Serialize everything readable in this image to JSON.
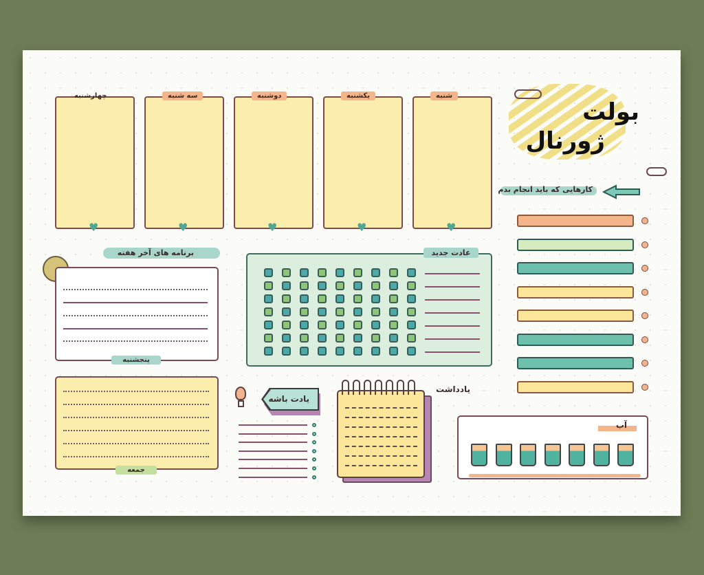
{
  "title": {
    "line1": "بولت",
    "line2": "ژورنال"
  },
  "days": [
    {
      "label": "چهارشنبه",
      "tag_color": "transparent"
    },
    {
      "label": "سه شنبه",
      "tag_color": "#f4b58a"
    },
    {
      "label": "دوشنبه",
      "tag_color": "#f4b58a"
    },
    {
      "label": "یکشنبه",
      "tag_color": "#f4b58a"
    },
    {
      "label": "شنبه",
      "tag_color": "#f4b58a"
    }
  ],
  "todo": {
    "heading": "کارهایی که باید انجام بدم",
    "bar_colors": [
      "#f4b58a",
      "#d6ebc0",
      "#6cc0ac",
      "#fbe69a",
      "#fbe69a",
      "#6cc0ac",
      "#6cc0ac",
      "#fbe69a"
    ]
  },
  "weekend": {
    "heading": "برنامه های آخر هفته",
    "thursday": "پنجشنبه",
    "friday": "جمعه"
  },
  "habit": {
    "heading": "عادت جدید",
    "columns": 9,
    "rows": 7
  },
  "reminder": {
    "heading": "یادت باشه"
  },
  "notes": {
    "heading": "یادداشت"
  },
  "water": {
    "heading": "آب",
    "cups": 7
  },
  "colors": {
    "background": "#6e7d57",
    "box_fill": "#fbeeac",
    "outline": "#7a4a52",
    "teal": "#6cc0ac",
    "orange": "#f4b58a"
  }
}
